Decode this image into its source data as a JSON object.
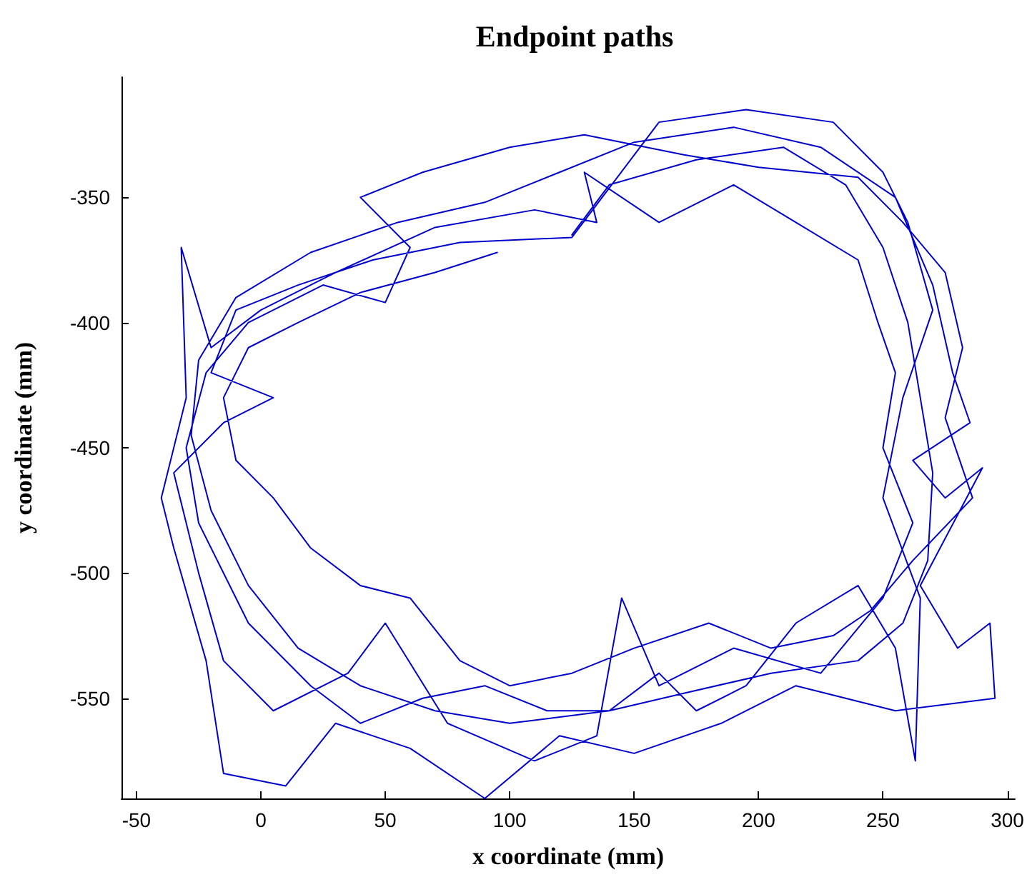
{
  "chart_data": {
    "type": "line",
    "title": "Endpoint paths",
    "xlabel": "x coordinate (mm)",
    "ylabel": "y coordinate (mm)",
    "xlim": [
      -56,
      303
    ],
    "xticks": [
      -50,
      0,
      50,
      100,
      150,
      200,
      250,
      300
    ],
    "ylim": [
      -590,
      -302
    ],
    "yticks": [
      -550,
      -500,
      -450,
      -400,
      -350
    ],
    "grid": false,
    "marker": "none",
    "line_style": "solid",
    "series": [
      {
        "color": "#0000cc",
        "x": [
          125,
          140,
          175,
          210,
          235,
          250,
          260,
          265,
          270,
          268,
          258,
          240,
          205,
          170,
          140,
          100,
          70,
          40,
          15,
          -5,
          -20,
          -28,
          -25,
          -10,
          20,
          55,
          90,
          120,
          150,
          190,
          225,
          255,
          270,
          278,
          285,
          262,
          275,
          290,
          265,
          280,
          293,
          295,
          255,
          215,
          185,
          150,
          120,
          90,
          60,
          30,
          10,
          -15,
          -22,
          -35,
          -40,
          -30,
          -32,
          -20,
          0,
          30,
          70,
          110,
          135,
          130,
          160,
          190,
          215,
          240,
          248,
          255,
          250,
          262,
          250,
          225,
          190,
          160,
          145,
          135,
          110,
          75,
          50,
          35,
          5,
          -15,
          -25,
          -35,
          -15,
          5,
          -20,
          -10,
          15,
          45,
          80,
          125,
          160,
          195,
          230,
          250,
          260,
          270,
          258,
          250,
          265,
          263,
          255,
          240,
          215,
          195,
          175,
          160,
          140,
          115,
          90,
          65,
          40,
          20,
          -5,
          -25,
          -30,
          -22,
          -5,
          25,
          50,
          60,
          40,
          65,
          100,
          130,
          170,
          200,
          240,
          258,
          275,
          282,
          275,
          286,
          262,
          245,
          230,
          205,
          180,
          150,
          125,
          100,
          80,
          60,
          40,
          20,
          5,
          -10,
          -15,
          -5,
          15,
          40,
          70,
          95
        ],
        "values": [
          -365,
          -345,
          -335,
          -330,
          -345,
          -370,
          -400,
          -430,
          -460,
          -495,
          -520,
          -535,
          -540,
          -548,
          -555,
          -560,
          -555,
          -545,
          -530,
          -505,
          -475,
          -445,
          -415,
          -390,
          -372,
          -360,
          -352,
          -340,
          -328,
          -322,
          -330,
          -350,
          -385,
          -420,
          -440,
          -455,
          -470,
          -458,
          -505,
          -530,
          -520,
          -550,
          -555,
          -545,
          -560,
          -572,
          -565,
          -590,
          -570,
          -560,
          -585,
          -580,
          -535,
          -490,
          -470,
          -430,
          -370,
          -410,
          -395,
          -380,
          -362,
          -355,
          -360,
          -340,
          -360,
          -345,
          -360,
          -375,
          -400,
          -420,
          -450,
          -480,
          -510,
          -540,
          -530,
          -545,
          -510,
          -565,
          -575,
          -560,
          -520,
          -540,
          -555,
          -535,
          -500,
          -460,
          -440,
          -430,
          -420,
          -395,
          -385,
          -375,
          -368,
          -366,
          -320,
          -315,
          -320,
          -340,
          -360,
          -395,
          -430,
          -470,
          -510,
          -575,
          -530,
          -505,
          -520,
          -545,
          -555,
          -540,
          -555,
          -555,
          -545,
          -550,
          -560,
          -545,
          -520,
          -480,
          -450,
          -420,
          -400,
          -385,
          -392,
          -370,
          -350,
          -340,
          -330,
          -325,
          -333,
          -338,
          -342,
          -360,
          -380,
          -410,
          -438,
          -470,
          -495,
          -515,
          -525,
          -530,
          -520,
          -530,
          -540,
          -545,
          -535,
          -510,
          -505,
          -490,
          -470,
          -455,
          -430,
          -410,
          -400,
          -388,
          -380,
          -372
        ]
      }
    ]
  }
}
